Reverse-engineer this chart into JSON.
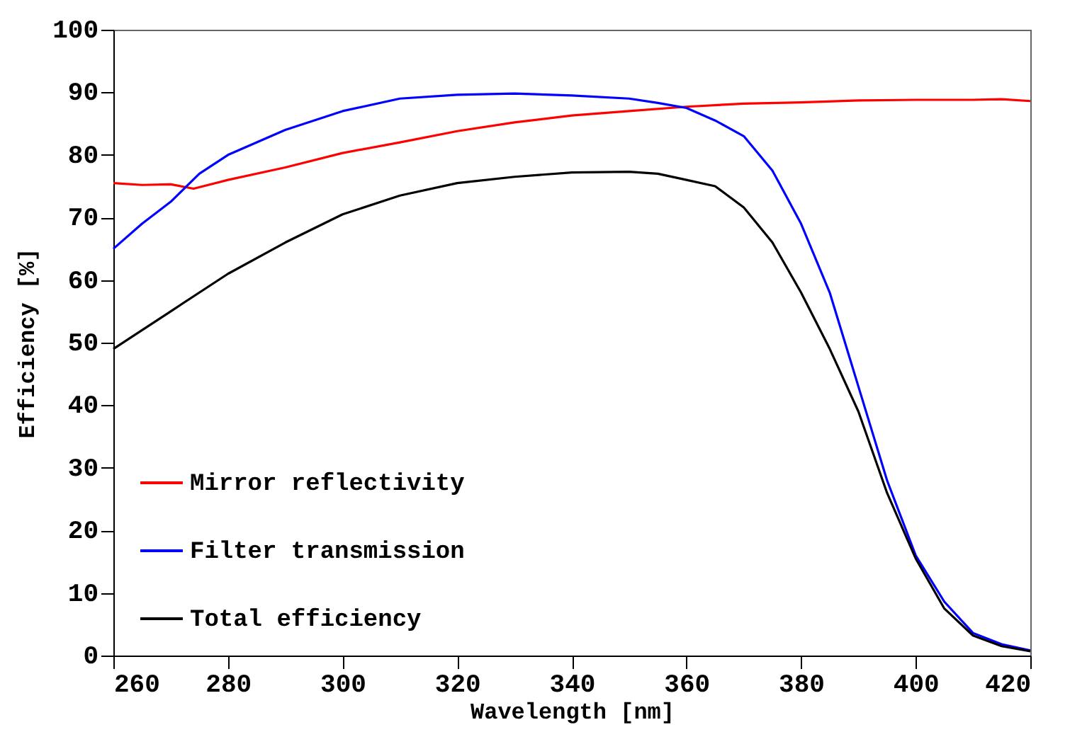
{
  "chart_data": {
    "type": "line",
    "xlabel": "Wavelength [nm]",
    "ylabel": "Efficiency [%]",
    "xlim": [
      260,
      420
    ],
    "xticks": [
      260,
      280,
      300,
      320,
      340,
      360,
      380,
      400,
      420
    ],
    "ylim": [
      0,
      100
    ],
    "yticks": [
      0,
      10,
      20,
      30,
      40,
      50,
      60,
      70,
      80,
      90,
      100
    ],
    "grid": false,
    "legend": "bottom left",
    "line_style": "solid",
    "marker": "none",
    "series": [
      {
        "name": "Mirror reflectivity",
        "color": "#ff0000",
        "x": [
          260,
          265,
          270,
          274,
          280,
          290,
          300,
          310,
          320,
          330,
          340,
          350,
          360,
          370,
          380,
          390,
          400,
          410,
          415,
          420
        ],
        "values": [
          75.5,
          75.2,
          75.3,
          74.6,
          76,
          78,
          80.3,
          82,
          83.8,
          85.2,
          86.3,
          87,
          87.7,
          88.2,
          88.4,
          88.7,
          88.8,
          88.8,
          88.9,
          88.6
        ]
      },
      {
        "name": "Filter transmission",
        "color": "#0000ff",
        "x": [
          260,
          265,
          270,
          275,
          280,
          290,
          300,
          310,
          320,
          330,
          340,
          350,
          355,
          360,
          365,
          370,
          375,
          380,
          385,
          390,
          395,
          400,
          405,
          410,
          415,
          420
        ],
        "values": [
          65,
          69,
          72.5,
          77,
          80,
          84,
          87,
          89,
          89.6,
          89.8,
          89.5,
          89,
          88.3,
          87.5,
          85.5,
          83,
          77.5,
          69,
          58,
          43,
          28,
          16,
          8.6,
          3.6,
          1.8,
          0.8
        ]
      },
      {
        "name": "Total efficiency",
        "color": "#000000",
        "x": [
          260,
          270,
          280,
          290,
          300,
          310,
          320,
          330,
          340,
          350,
          355,
          360,
          365,
          370,
          375,
          380,
          385,
          390,
          395,
          400,
          405,
          410,
          415,
          420
        ],
        "values": [
          49,
          55,
          61,
          66,
          70.5,
          73.5,
          75.5,
          76.5,
          77.2,
          77.3,
          77,
          76,
          75,
          71.6,
          66,
          58,
          49,
          39,
          26,
          15.5,
          7.5,
          3.2,
          1.5,
          0.7
        ]
      }
    ]
  }
}
